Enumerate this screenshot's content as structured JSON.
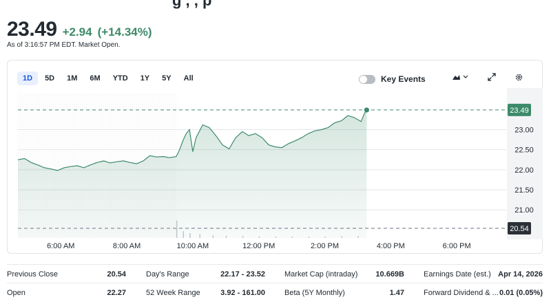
{
  "header": {
    "top_cut_text": "g , , p",
    "price": "23.49",
    "change": "+2.94",
    "change_pct": "(+14.34%)",
    "as_of": "As of 3:16:57 PM EDT. Market Open.",
    "positive_color": "#3d8a6a"
  },
  "chart_controls": {
    "ranges": [
      "1D",
      "5D",
      "1M",
      "6M",
      "YTD",
      "1Y",
      "5Y",
      "All"
    ],
    "active_range": "1D",
    "key_events_label": "Key Events",
    "key_events_enabled": false,
    "icons": [
      "mountain-chart-icon",
      "chevron-down-icon",
      "expand-icon",
      "gear-icon"
    ]
  },
  "chart_data": {
    "type": "area",
    "x_ticks": [
      "6:00 AM",
      "8:00 AM",
      "10:00 AM",
      "12:00 PM",
      "2:00 PM",
      "4:00 PM",
      "6:00 PM"
    ],
    "y_ticks": [
      "23.00",
      "22.50",
      "22.00",
      "21.50",
      "21.00"
    ],
    "current_price_label": "23.49",
    "previous_close_label": "20.54",
    "ylim": [
      20.3,
      23.9
    ],
    "x_hours_range": [
      4.7,
      19.5
    ],
    "premarket_end_hour": 9.5,
    "series": [
      {
        "values": [
          [
            4.7,
            22.25
          ],
          [
            4.9,
            22.28
          ],
          [
            5.1,
            22.18
          ],
          [
            5.3,
            22.12
          ],
          [
            5.5,
            22.05
          ],
          [
            5.7,
            22.02
          ],
          [
            5.9,
            21.98
          ],
          [
            6.1,
            22.05
          ],
          [
            6.3,
            22.08
          ],
          [
            6.5,
            22.1
          ],
          [
            6.7,
            22.05
          ],
          [
            6.9,
            22.12
          ],
          [
            7.1,
            22.18
          ],
          [
            7.3,
            22.22
          ],
          [
            7.5,
            22.17
          ],
          [
            7.7,
            22.2
          ],
          [
            7.9,
            22.22
          ],
          [
            8.1,
            22.18
          ],
          [
            8.3,
            22.15
          ],
          [
            8.5,
            22.22
          ],
          [
            8.7,
            22.35
          ],
          [
            8.9,
            22.32
          ],
          [
            9.1,
            22.33
          ],
          [
            9.3,
            22.3
          ],
          [
            9.5,
            22.33
          ],
          [
            9.6,
            22.5
          ],
          [
            9.7,
            22.72
          ],
          [
            9.8,
            22.9
          ],
          [
            9.9,
            23.0
          ],
          [
            10.0,
            22.45
          ],
          [
            10.1,
            22.8
          ],
          [
            10.3,
            23.12
          ],
          [
            10.5,
            23.05
          ],
          [
            10.7,
            22.85
          ],
          [
            10.9,
            22.62
          ],
          [
            11.1,
            22.52
          ],
          [
            11.3,
            22.8
          ],
          [
            11.5,
            22.95
          ],
          [
            11.7,
            22.85
          ],
          [
            11.9,
            22.9
          ],
          [
            12.1,
            22.8
          ],
          [
            12.3,
            22.62
          ],
          [
            12.5,
            22.57
          ],
          [
            12.7,
            22.55
          ],
          [
            12.9,
            22.65
          ],
          [
            13.1,
            22.72
          ],
          [
            13.3,
            22.8
          ],
          [
            13.5,
            22.9
          ],
          [
            13.7,
            22.97
          ],
          [
            13.9,
            23.0
          ],
          [
            14.1,
            23.05
          ],
          [
            14.3,
            23.17
          ],
          [
            14.5,
            23.22
          ],
          [
            14.7,
            23.35
          ],
          [
            14.9,
            23.3
          ],
          [
            15.1,
            23.2
          ],
          [
            15.2,
            23.4
          ],
          [
            15.27,
            23.49
          ]
        ]
      }
    ],
    "volume": [
      [
        9.5,
        0.9
      ],
      [
        9.7,
        0.35
      ],
      [
        9.9,
        0.25
      ],
      [
        10.2,
        0.2
      ],
      [
        10.6,
        0.15
      ],
      [
        11.0,
        0.12
      ],
      [
        11.5,
        0.1
      ],
      [
        12.0,
        0.08
      ],
      [
        12.5,
        0.07
      ],
      [
        13.0,
        0.07
      ],
      [
        13.5,
        0.07
      ],
      [
        14.0,
        0.08
      ],
      [
        14.5,
        0.09
      ],
      [
        15.0,
        0.1
      ]
    ]
  },
  "stats": [
    [
      {
        "label": "Previous Close",
        "value": "20.54"
      },
      {
        "label": "Day's Range",
        "value": "22.17 - 23.52"
      },
      {
        "label": "Market Cap (intraday)",
        "value": "10.669B"
      },
      {
        "label": "Earnings Date (est.)",
        "value": "Apr 14, 2026"
      }
    ],
    [
      {
        "label": "Open",
        "value": "22.27"
      },
      {
        "label": "52 Week Range",
        "value": "3.92 - 161.00"
      },
      {
        "label": "Beta (5Y Monthly)",
        "value": "1.47"
      },
      {
        "label": "Forward Dividend & ...",
        "value": "0.01 (0.05%)"
      }
    ]
  ]
}
